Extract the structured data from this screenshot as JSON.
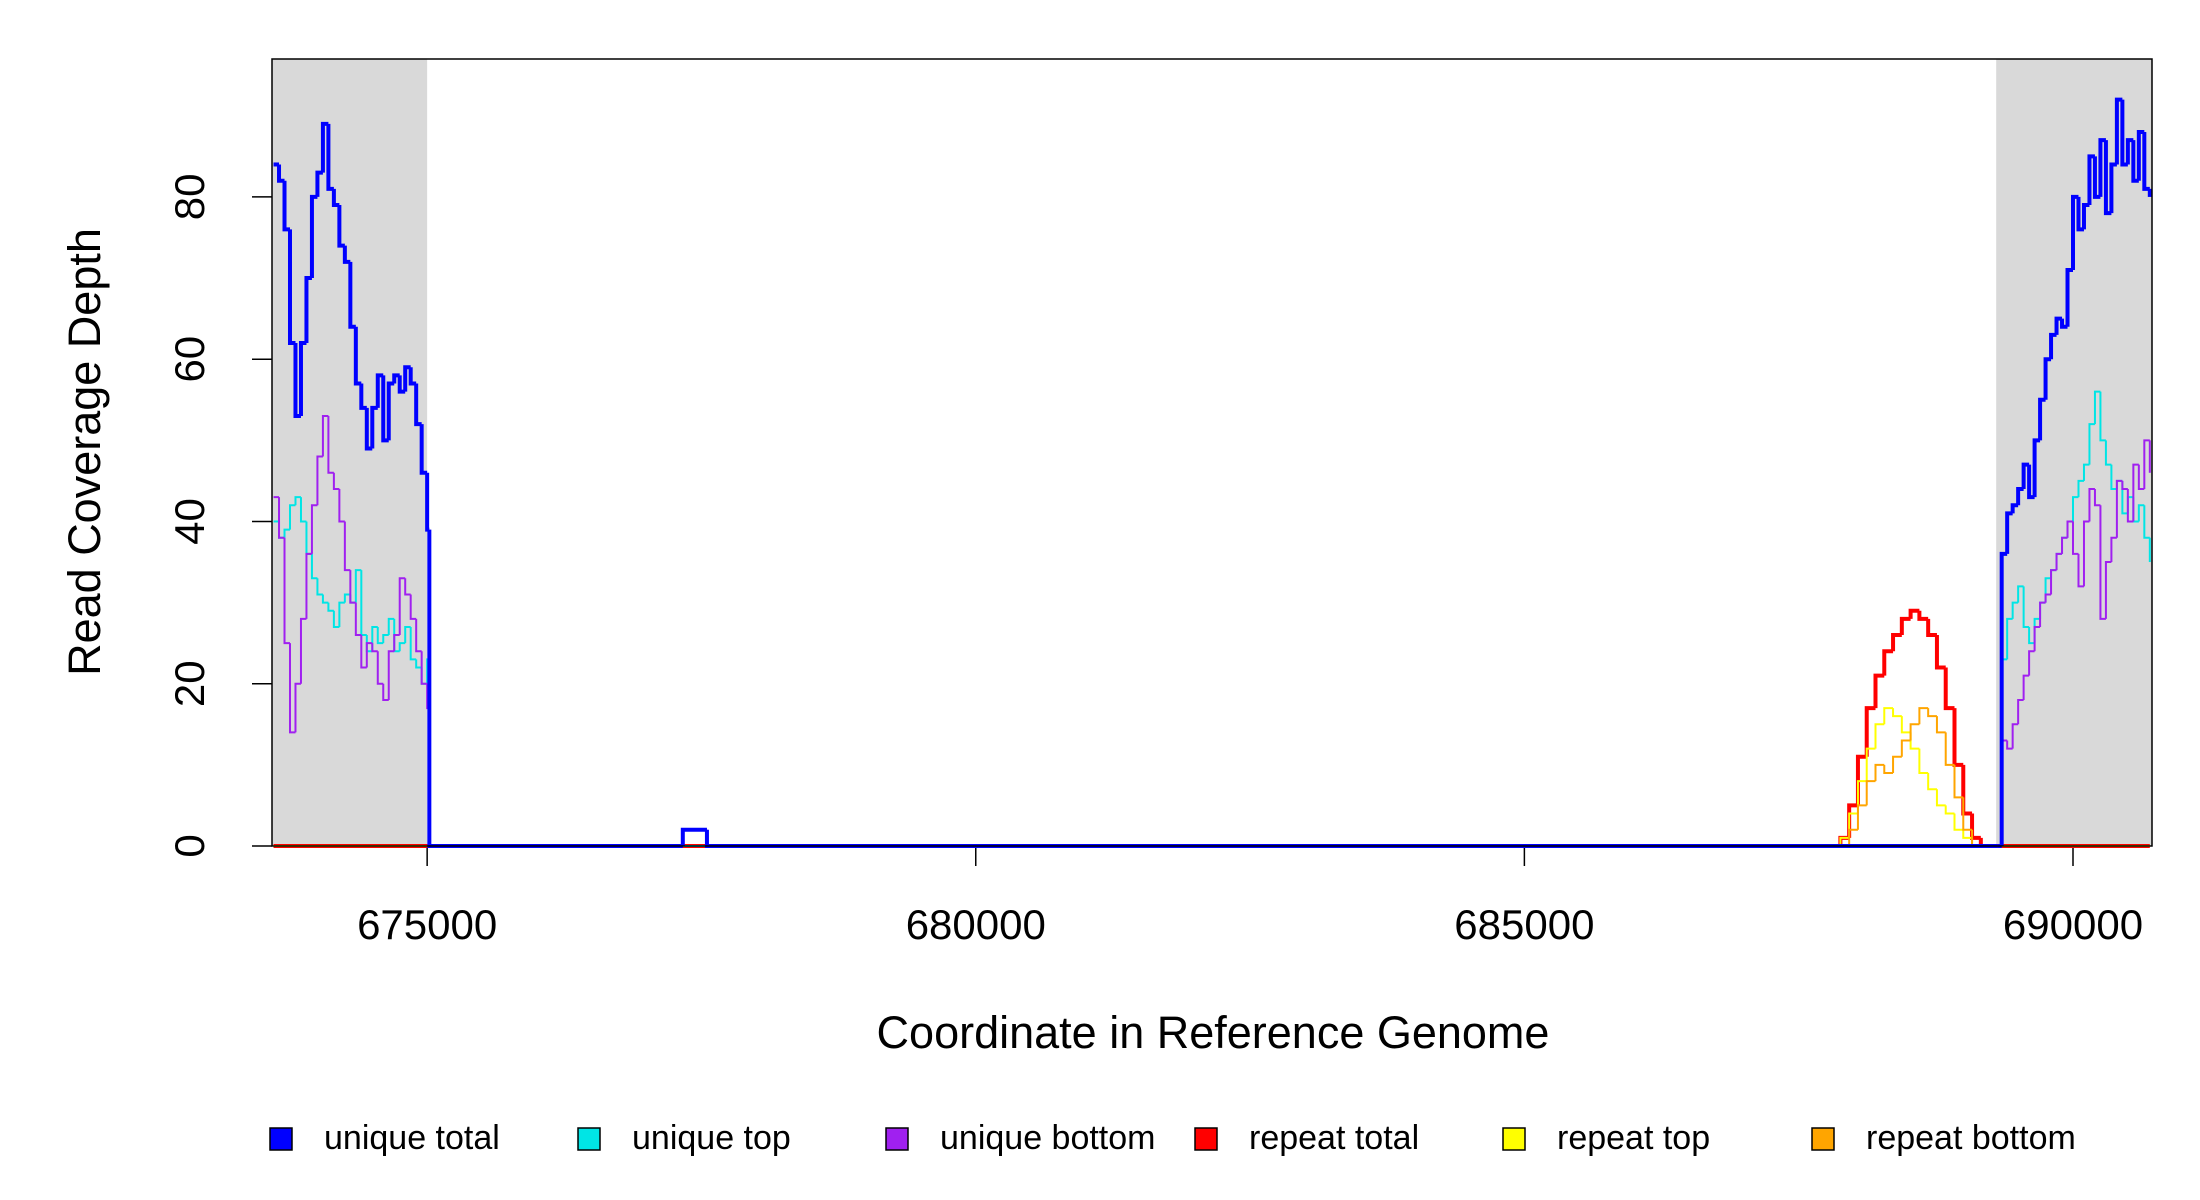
{
  "chart_data": {
    "type": "step",
    "x_label": "Coordinate in Reference Genome",
    "y_label": "Read Coverage Depth",
    "xlim": [
      673586,
      690720
    ],
    "ylim": [
      0,
      97
    ],
    "xticks": [
      675000,
      680000,
      685000,
      690000
    ],
    "yticks": [
      0,
      20,
      40,
      60,
      80
    ],
    "shaded_regions": [
      [
        673586,
        675000
      ],
      [
        689300,
        690720
      ]
    ],
    "shade_color": "#d9d9d9",
    "legend": "bottom",
    "series": [
      {
        "name": "unique total",
        "color": "#0000ff",
        "x": [
          673600,
          673650,
          673700,
          673750,
          673800,
          673850,
          673900,
          673950,
          674000,
          674050,
          674100,
          674150,
          674200,
          674250,
          674300,
          674350,
          674400,
          674450,
          674500,
          674550,
          674600,
          674650,
          674700,
          674750,
          674800,
          674850,
          674900,
          674950,
          675000,
          675020,
          677330,
          677550,
          689310,
          689350,
          689400,
          689450,
          689500,
          689550,
          689600,
          689650,
          689700,
          689750,
          689800,
          689850,
          689900,
          689950,
          690000,
          690050,
          690100,
          690150,
          690200,
          690250,
          690300,
          690350,
          690400,
          690450,
          690500,
          690550,
          690600,
          690650,
          690700
        ],
        "values": [
          84,
          82,
          76,
          62,
          53,
          62,
          70,
          80,
          83,
          89,
          81,
          79,
          74,
          72,
          64,
          57,
          54,
          49,
          54,
          58,
          50,
          57,
          58,
          56,
          59,
          57,
          52,
          46,
          39,
          0,
          2,
          0,
          0,
          36,
          41,
          42,
          44,
          47,
          43,
          50,
          55,
          60,
          63,
          65,
          64,
          71,
          80,
          76,
          79,
          85,
          80,
          87,
          78,
          84,
          92,
          84,
          87,
          82,
          88,
          81,
          80
        ]
      },
      {
        "name": "unique top",
        "color": "#00e5e5",
        "x": [
          673600,
          673650,
          673700,
          673750,
          673800,
          673850,
          673900,
          673950,
          674000,
          674050,
          674100,
          674150,
          674200,
          674250,
          674300,
          674350,
          674400,
          674450,
          674500,
          674550,
          674600,
          674650,
          674700,
          674750,
          674800,
          674850,
          674900,
          674950,
          675000,
          675020,
          677330,
          677550,
          689310,
          689350,
          689400,
          689450,
          689500,
          689550,
          689600,
          689650,
          689700,
          689750,
          689800,
          689850,
          689900,
          689950,
          690000,
          690050,
          690100,
          690150,
          690200,
          690250,
          690300,
          690350,
          690400,
          690450,
          690500,
          690550,
          690600,
          690650,
          690700
        ],
        "values": [
          40,
          38,
          39,
          42,
          43,
          40,
          36,
          33,
          31,
          30,
          29,
          27,
          30,
          31,
          30,
          34,
          26,
          24,
          27,
          25,
          26,
          28,
          24,
          25,
          27,
          23,
          22,
          20,
          23,
          0,
          0,
          0,
          0,
          23,
          28,
          30,
          32,
          27,
          25,
          28,
          30,
          33,
          34,
          36,
          38,
          40,
          43,
          45,
          47,
          52,
          56,
          50,
          47,
          44,
          45,
          41,
          43,
          40,
          42,
          38,
          35
        ]
      },
      {
        "name": "unique bottom",
        "color": "#a020f0",
        "x": [
          673600,
          673650,
          673700,
          673750,
          673800,
          673850,
          673900,
          673950,
          674000,
          674050,
          674100,
          674150,
          674200,
          674250,
          674300,
          674350,
          674400,
          674450,
          674500,
          674550,
          674600,
          674650,
          674700,
          674750,
          674800,
          674850,
          674900,
          674950,
          675000,
          675020,
          677330,
          677550,
          689310,
          689350,
          689400,
          689450,
          689500,
          689550,
          689600,
          689650,
          689700,
          689750,
          689800,
          689850,
          689900,
          689950,
          690000,
          690050,
          690100,
          690150,
          690200,
          690250,
          690300,
          690350,
          690400,
          690450,
          690500,
          690550,
          690600,
          690650,
          690700
        ],
        "values": [
          43,
          38,
          25,
          14,
          20,
          28,
          36,
          42,
          48,
          53,
          46,
          44,
          40,
          34,
          30,
          26,
          22,
          25,
          24,
          20,
          18,
          24,
          26,
          33,
          31,
          28,
          24,
          20,
          17,
          0,
          2,
          0,
          0,
          13,
          12,
          15,
          18,
          21,
          24,
          27,
          30,
          31,
          34,
          36,
          38,
          40,
          36,
          32,
          40,
          44,
          42,
          28,
          35,
          38,
          45,
          44,
          40,
          47,
          44,
          50,
          46
        ]
      },
      {
        "name": "repeat total",
        "color": "#ff0000",
        "x": [
          673600,
          687880,
          687960,
          688040,
          688120,
          688200,
          688280,
          688360,
          688440,
          688520,
          688600,
          688680,
          688760,
          688840,
          688920,
          689000,
          689080,
          689160,
          690700
        ],
        "values": [
          0,
          1,
          5,
          11,
          17,
          21,
          24,
          26,
          28,
          29,
          28,
          26,
          22,
          17,
          10,
          4,
          1,
          0,
          0
        ]
      },
      {
        "name": "repeat top",
        "color": "#ffff00",
        "x": [
          673600,
          687880,
          687960,
          688040,
          688120,
          688200,
          688280,
          688360,
          688440,
          688520,
          688600,
          688680,
          688760,
          688840,
          688920,
          689000,
          689080,
          689160,
          690700
        ],
        "values": [
          0,
          1,
          4,
          8,
          12,
          15,
          17,
          16,
          14,
          12,
          9,
          7,
          5,
          4,
          2,
          1,
          0,
          0,
          0
        ]
      },
      {
        "name": "repeat bottom",
        "color": "#ffa500",
        "x": [
          673600,
          687880,
          687960,
          688040,
          688120,
          688200,
          688280,
          688360,
          688440,
          688520,
          688600,
          688680,
          688760,
          688840,
          688920,
          689000,
          689080,
          689160,
          690700
        ],
        "values": [
          0,
          0,
          2,
          5,
          8,
          10,
          9,
          11,
          13,
          15,
          17,
          16,
          14,
          10,
          6,
          2,
          0,
          0,
          0
        ]
      }
    ]
  }
}
